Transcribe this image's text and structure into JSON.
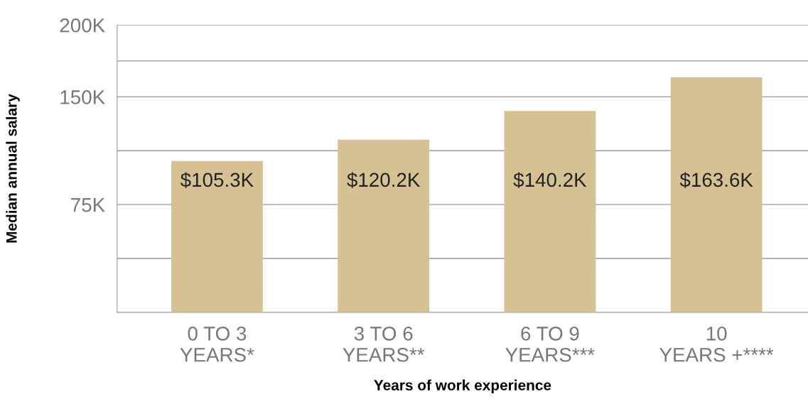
{
  "chart_data": {
    "type": "bar",
    "xlabel": "Years of work experience",
    "ylabel": "Median annual salary",
    "categories": [
      "0 TO 3\nYEARS*",
      "3 TO 6\nYEARS**",
      "6 TO 9\nYEARS***",
      "10\nYEARS +****"
    ],
    "values": [
      105.3,
      120.2,
      140.2,
      163.6
    ],
    "value_labels": [
      "$105.3K",
      "$120.2K",
      "$140.2K",
      "$163.6K"
    ],
    "color": "#d6c192",
    "ylim": [
      0,
      200
    ],
    "yticks": [
      {
        "value": 200,
        "label": "200K"
      },
      {
        "value": 175,
        "label": null
      },
      {
        "value": 150,
        "label": "150K"
      },
      {
        "value": 112.5,
        "label": null
      },
      {
        "value": 75,
        "label": "75K"
      },
      {
        "value": 37.5,
        "label": null
      }
    ],
    "grid": "y",
    "legend": false
  }
}
